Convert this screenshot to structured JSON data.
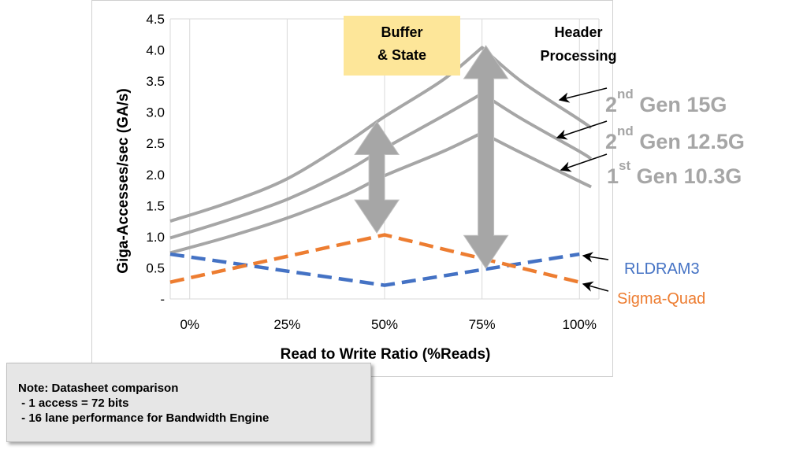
{
  "chart_data": {
    "type": "line",
    "xlabel": "Read to Write Ratio (%Reads)",
    "ylabel": "Giga-Accesses/sec (GA/s)",
    "x_tick_labels": [
      "0%",
      "25%",
      "50%",
      "75%",
      "100%"
    ],
    "y_tick_labels": [
      "-",
      "0.5",
      "1.0",
      "1.5",
      "2.0",
      "2.5",
      "3.0",
      "3.5",
      "4.0",
      "4.5"
    ],
    "x_range": [
      -0.05,
      1.05
    ],
    "ylim": [
      0,
      4.5
    ],
    "grid": "vertical",
    "series": [
      {
        "id": "gen2_15g",
        "color": "#a6a6a6",
        "style": "solid",
        "x": [
          -0.05,
          0.1,
          0.25,
          0.4,
          0.5,
          0.65,
          0.75,
          0.85,
          1.0,
          1.03
        ],
        "y": [
          1.25,
          1.55,
          1.93,
          2.5,
          2.93,
          3.52,
          4.04,
          3.5,
          2.88,
          2.75
        ]
      },
      {
        "id": "gen2_125g",
        "color": "#a6a6a6",
        "style": "solid",
        "x": [
          -0.05,
          0.1,
          0.25,
          0.4,
          0.5,
          0.65,
          0.75,
          0.85,
          1.0,
          1.03
        ],
        "y": [
          0.98,
          1.27,
          1.6,
          2.05,
          2.42,
          2.94,
          3.3,
          2.9,
          2.37,
          2.25
        ]
      },
      {
        "id": "gen1_103g",
        "color": "#a6a6a6",
        "style": "solid",
        "x": [
          -0.05,
          0.1,
          0.25,
          0.4,
          0.5,
          0.65,
          0.75,
          0.85,
          1.0,
          1.03
        ],
        "y": [
          0.74,
          1.0,
          1.3,
          1.67,
          1.98,
          2.37,
          2.67,
          2.35,
          1.89,
          1.8
        ]
      },
      {
        "id": "rldram3",
        "name": "RLDRAM3",
        "color": "#4472c4",
        "style": "dashed",
        "x": [
          -0.05,
          0.5,
          1.0
        ],
        "y": [
          0.72,
          0.22,
          0.72
        ]
      },
      {
        "id": "sigma_quad",
        "name": "Sigma-Quad",
        "color": "#ed7d31",
        "style": "dashed",
        "x": [
          -0.05,
          0.5,
          1.0
        ],
        "y": [
          0.27,
          1.03,
          0.27
        ]
      }
    ],
    "gen_labels": [
      {
        "series": "gen2_15g",
        "pre": "2",
        "sup": "nd",
        "text": "Gen 15G"
      },
      {
        "series": "gen2_125g",
        "pre": "2",
        "sup": "nd",
        "text": "Gen 12.5G"
      },
      {
        "series": "gen1_103g",
        "pre": "1",
        "sup": "st",
        "text": "Gen 10.3G"
      }
    ],
    "annotations": {
      "buffer_state": [
        "Buffer",
        "& State"
      ],
      "header_processing": [
        "Header",
        "Processing"
      ]
    },
    "colors": {
      "gen_lines": "#a6a6a6",
      "rldram": "#4472c4",
      "sigma": "#ed7d31",
      "double_arrow": "#a6a6a6",
      "callout_fill": "#fde699"
    }
  },
  "note": {
    "title": "Note: Datasheet comparison",
    "lines": [
      " - 1 access = 72 bits",
      " - 16 lane performance for Bandwidth Engine"
    ]
  }
}
